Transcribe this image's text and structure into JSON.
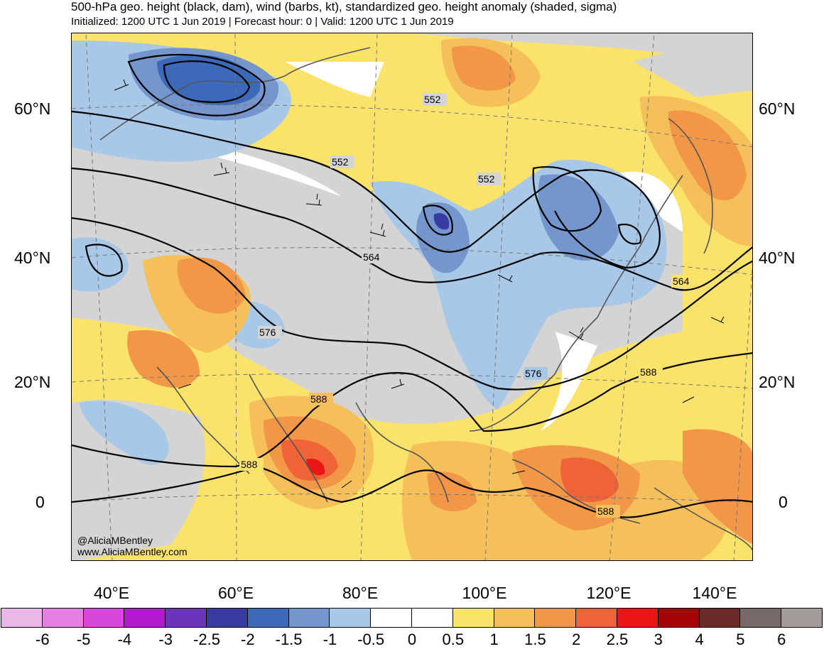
{
  "header": {
    "title": "500-hPa geo. height (black, dam), wind (barbs, kt), standardized geo. height anomaly (shaded, sigma)",
    "subtitle": "Initialized: 1200 UTC 1 Jun 2019 | Forecast hour: 0 | Valid: 1200 UTC 1 Jun 2019"
  },
  "map": {
    "lat_labels": [
      "60°N",
      "40°N",
      "20°N",
      "0"
    ],
    "lon_labels": [
      "40°E",
      "60°E",
      "80°E",
      "100°E",
      "120°E",
      "140°E"
    ],
    "contour_labels": {
      "c552a": "552",
      "c552b": "552",
      "c552c": "552",
      "c564a": "564",
      "c564b": "564",
      "c576a": "576",
      "c576b": "576",
      "c588a": "588",
      "c588b": "588",
      "c588c": "588",
      "c588d": "588"
    },
    "credit_handle": "@AliciaMBentley",
    "credit_url": "www.AliciaMBentley.com"
  },
  "colorbar": {
    "ticks": [
      "-6",
      "-5",
      "-4",
      "-3",
      "-2.5",
      "-2",
      "-1.5",
      "-1",
      "-0.5",
      "0",
      "0.5",
      "1",
      "1.5",
      "2",
      "2.5",
      "3",
      "4",
      "5",
      "6"
    ],
    "colors": [
      "#eab7e7",
      "#e57fe1",
      "#d648da",
      "#b31bd0",
      "#6a35b9",
      "#3a3aa3",
      "#3d6ab8",
      "#7596cd",
      "#a9c8e7",
      "#ffffff",
      "#ffffff",
      "#fbe36b",
      "#f5c05a",
      "#f29647",
      "#ee6437",
      "#ea1616",
      "#a40404",
      "#6b2a28",
      "#766a68",
      "#a49c9b"
    ]
  }
}
